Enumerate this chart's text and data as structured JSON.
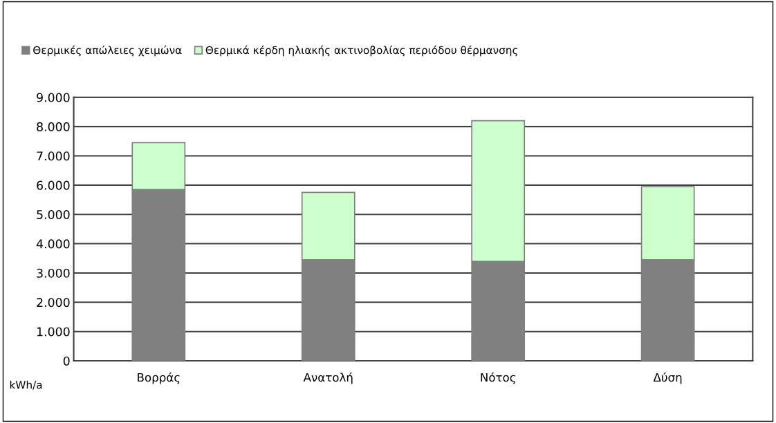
{
  "chart_data": {
    "type": "bar",
    "stacked": true,
    "ylabel": "kWh/a",
    "categories": [
      "Βορράς",
      "Ανατολή",
      "Νότος",
      "Δύση"
    ],
    "series": [
      {
        "name": "Θερμικές απώλειες χειμώνα",
        "color": "#808080",
        "values": [
          5850,
          3450,
          3400,
          3450
        ]
      },
      {
        "name": "Θερμικά κέρδη ηλιακής ακτινοβολίας περιόδου θέρμανσης",
        "color": "#ccffcc",
        "values": [
          1600,
          2300,
          4800,
          2500
        ]
      }
    ],
    "ylim": [
      0,
      9000
    ],
    "yticks": [
      0,
      {
        "value": 1000,
        "label": "1.000"
      },
      {
        "value": 2000,
        "label": "2.000"
      },
      {
        "value": 3000,
        "label": "3.000"
      },
      {
        "value": 4000,
        "label": "4.000"
      },
      {
        "value": 5000,
        "label": "5.000"
      },
      {
        "value": 6000,
        "label": "6.000"
      },
      {
        "value": 7000,
        "label": "7.000"
      },
      {
        "value": 8000,
        "label": "8.000"
      },
      {
        "value": 9000,
        "label": "9.000"
      }
    ],
    "grid": "y",
    "legend": "top left"
  }
}
